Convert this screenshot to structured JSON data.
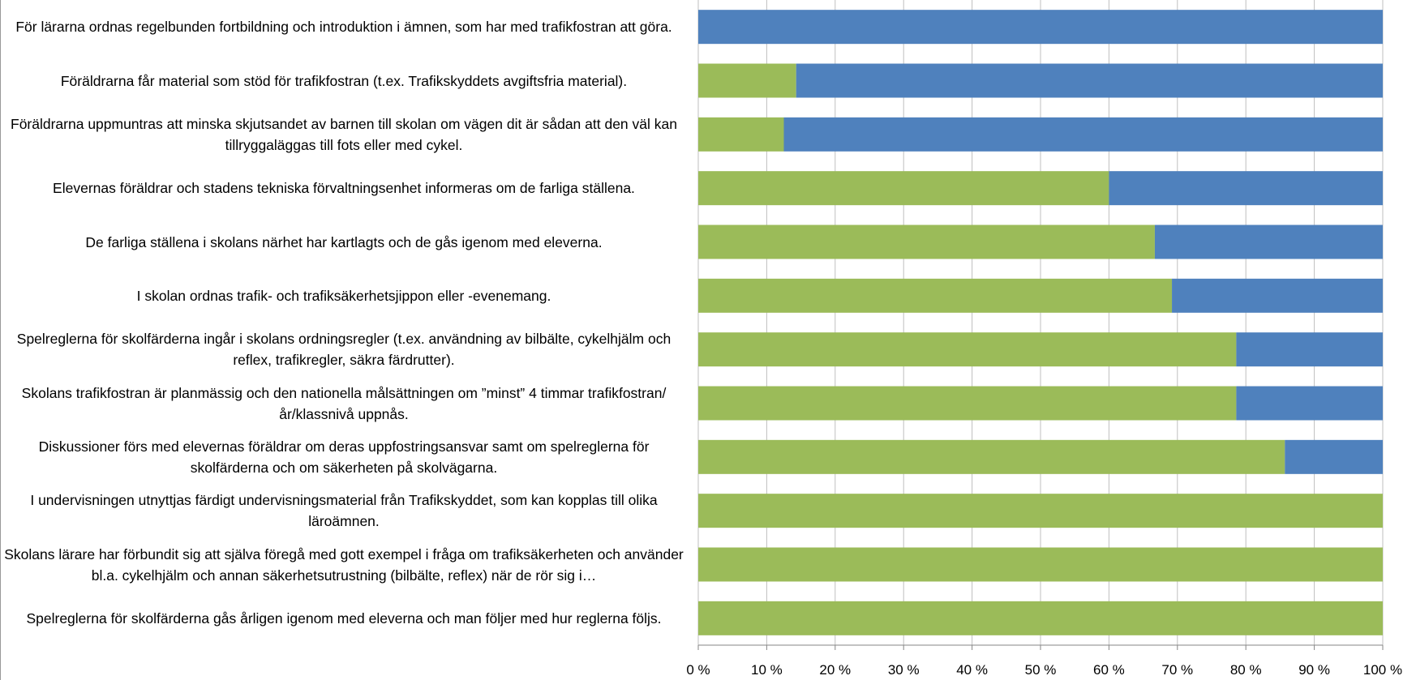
{
  "chart_data": {
    "type": "stacked_barh",
    "categories": [
      "För lärarna ordnas regelbunden fortbildning och introduktion i ämnen, som har med trafikfostran att göra.",
      "Föräldrarna får material som stöd för trafikfostran (t.ex. Trafikskyddets avgiftsfria material).",
      "Föräldrarna uppmuntras att minska skjutsandet av barnen till skolan om vägen dit är sådan att den väl kan tillryggaläggas till fots eller med cykel.",
      "Elevernas föräldrar och stadens tekniska förvaltningsenhet informeras om de farliga ställena.",
      "De farliga ställena i skolans närhet har kartlagts och de gås igenom med eleverna.",
      "I skolan ordnas trafik- och trafiksäkerhetsjippon eller -evenemang.",
      "Spelreglerna för skolfärderna ingår i skolans ordningsregler (t.ex. användning av bilbälte, cykelhjälm och reflex, trafikregler, säkra färdrutter).",
      "Skolans trafikfostran är planmässig och den nationella målsättningen om ”minst” 4 timmar trafikfostran/år/klassnivå uppnås.",
      "Diskussioner förs med elevernas föräldrar om deras uppfostringsansvar samt om spelreglerna för skolfärderna och om säkerheten på skolvägarna.",
      "I undervisningen utnyttjas färdigt undervisningsmaterial från Trafikskyddet, som kan kopplas till olika läroämnen.",
      "Skolans lärare har förbundit sig att själva föregå med gott exempel i fråga om trafiksäkerheten och använder bl.a. cykelhjälm och annan säkerhetsutrustning (bilbälte, reflex) när de rör sig i…",
      "Spelreglerna för skolfärderna gås årligen igenom med eleverna och man följer med hur reglerna följs."
    ],
    "series": [
      {
        "color": "#9bbb59",
        "values": [
          0,
          14.3,
          12.5,
          60,
          66.7,
          69.2,
          78.6,
          78.6,
          85.7,
          100,
          100,
          100
        ]
      },
      {
        "color": "#4f81bd",
        "values": [
          100,
          85.7,
          87.5,
          40,
          33.3,
          30.8,
          21.4,
          21.4,
          14.3,
          0,
          0,
          0
        ]
      }
    ],
    "xlim": [
      0,
      100
    ],
    "xticks": [
      {
        "value": 0,
        "label": "0 %"
      },
      {
        "value": 10,
        "label": "10 %"
      },
      {
        "value": 20,
        "label": "20 %"
      },
      {
        "value": 30,
        "label": "30 %"
      },
      {
        "value": 40,
        "label": "40 %"
      },
      {
        "value": 50,
        "label": "50 %"
      },
      {
        "value": 60,
        "label": "60 %"
      },
      {
        "value": 70,
        "label": "70 %"
      },
      {
        "value": 80,
        "label": "80 %"
      },
      {
        "value": 90,
        "label": "90 %"
      },
      {
        "value": 100,
        "label": "100 %"
      }
    ],
    "grid": true
  }
}
